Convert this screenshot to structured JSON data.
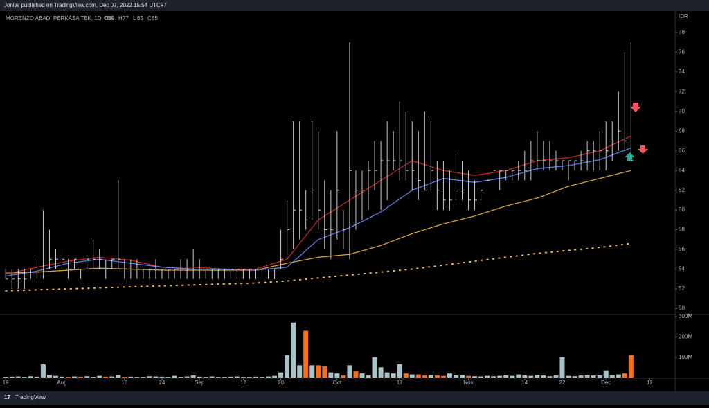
{
  "header": {
    "text": "JoniW published on TradingView.com, Dec 07, 2022 15:54 UTC+7"
  },
  "footer": {
    "brand": "TradingView"
  },
  "chart_data": {
    "type": "ohlc",
    "legend": {
      "symbol": "MORENZO ABADI PERKASA TBK, 1D, IDX",
      "ohlc": [
        {
          "label": "O",
          "value": 69
        },
        {
          "label": "H",
          "value": 77
        },
        {
          "label": "L",
          "value": 65
        },
        {
          "label": "C",
          "value": 65
        }
      ]
    },
    "currency": "IDR",
    "bar_color": "#c9ccd4",
    "up_color": "#a7c3c7",
    "down_color": "#f5701d",
    "high": [
      54,
      54,
      54,
      54,
      54,
      55,
      60,
      58,
      56,
      56,
      55,
      55,
      54,
      55,
      57,
      56,
      55,
      55,
      63,
      55,
      55,
      55,
      54,
      54,
      55,
      54,
      54,
      54,
      55,
      55,
      56,
      55,
      54,
      54,
      54,
      54,
      54,
      54,
      54,
      54,
      54,
      54,
      54,
      54,
      58,
      61,
      69,
      69,
      62,
      69,
      68,
      63,
      62,
      68,
      60,
      77,
      64,
      64,
      65,
      67,
      67,
      69,
      68,
      71,
      70,
      69,
      68,
      70,
      69,
      65,
      65,
      64,
      66,
      65,
      64,
      63,
      62,
      62,
      63,
      64,
      64,
      64,
      65,
      66,
      67,
      68,
      67,
      67,
      66,
      65,
      65,
      65,
      66,
      67,
      67,
      68,
      69,
      69,
      72,
      76,
      77
    ],
    "low": [
      53,
      52,
      52,
      52,
      53,
      53,
      53,
      54,
      54,
      54,
      53,
      54,
      53,
      54,
      54,
      54,
      53,
      54,
      54,
      53,
      53,
      53,
      53,
      53,
      53,
      53,
      53,
      53,
      53,
      53,
      53,
      53,
      53,
      53,
      53,
      53,
      53,
      53,
      53,
      53,
      53,
      53,
      53,
      53,
      54,
      55,
      56,
      57,
      58,
      59,
      58,
      56,
      55,
      57,
      56,
      55,
      58,
      59,
      60,
      62,
      60,
      61,
      64,
      63,
      63,
      62,
      61,
      62,
      62,
      60,
      60,
      60,
      61,
      61,
      60,
      60,
      61,
      62,
      63,
      62,
      63,
      63,
      63,
      63,
      63,
      64,
      64,
      64,
      64,
      64,
      63,
      64,
      64,
      64,
      64,
      64,
      64,
      65,
      66,
      66,
      65
    ],
    "close": [
      53,
      53,
      53,
      53,
      54,
      54,
      54,
      55,
      55,
      55,
      54,
      55,
      54,
      55,
      55,
      55,
      54,
      55,
      55,
      54,
      54,
      54,
      54,
      54,
      54,
      54,
      54,
      54,
      54,
      54,
      54,
      54,
      54,
      54,
      54,
      54,
      54,
      54,
      54,
      54,
      54,
      54,
      54,
      54,
      55,
      58,
      60,
      60,
      59,
      62,
      60,
      58,
      58,
      62,
      58,
      64,
      62,
      62,
      64,
      64,
      65,
      65,
      65,
      65,
      64,
      64,
      63,
      62,
      64,
      62,
      61,
      61,
      62,
      62,
      61,
      61,
      62,
      63,
      64,
      64,
      64,
      64,
      64,
      64,
      65,
      65,
      65,
      65,
      65,
      65,
      65,
      65,
      65,
      66,
      66,
      66,
      66,
      67,
      68,
      67,
      65
    ],
    "volume": [
      3,
      4,
      5,
      3,
      6,
      4,
      65,
      12,
      8,
      4,
      3,
      5,
      4,
      6,
      3,
      8,
      4,
      5,
      12,
      3,
      4,
      3,
      3,
      6,
      5,
      4,
      3,
      8,
      3,
      5,
      10,
      4,
      3,
      5,
      3,
      3,
      4,
      5,
      3,
      3,
      4,
      3,
      5,
      8,
      25,
      110,
      270,
      60,
      230,
      60,
      60,
      55,
      25,
      20,
      10,
      60,
      30,
      20,
      10,
      100,
      50,
      25,
      20,
      65,
      20,
      15,
      15,
      10,
      12,
      10,
      8,
      20,
      10,
      12,
      8,
      6,
      5,
      8,
      6,
      8,
      10,
      8,
      15,
      10,
      8,
      12,
      10,
      6,
      10,
      100,
      8,
      6,
      10,
      12,
      10,
      10,
      35,
      12,
      15,
      20,
      110
    ],
    "lines": [
      {
        "color": "#f2b84b",
        "style": "dotted",
        "x": [
          0,
          5,
          10,
          15,
          20,
          25,
          30,
          35,
          40,
          45,
          50,
          55,
          60,
          65,
          70,
          75,
          80,
          85,
          90,
          95,
          100
        ],
        "values": [
          51.8,
          51.9,
          52.0,
          52.1,
          52.2,
          52.3,
          52.4,
          52.5,
          52.6,
          52.8,
          53.1,
          53.4,
          53.7,
          54.0,
          54.4,
          54.8,
          55.2,
          55.6,
          55.9,
          56.2,
          56.6
        ]
      },
      {
        "color": "#d9a13c",
        "style": "solid",
        "x": [
          0,
          5,
          10,
          15,
          20,
          25,
          30,
          35,
          40,
          45,
          50,
          55,
          60,
          65,
          70,
          75,
          80,
          85,
          90,
          95,
          100
        ],
        "values": [
          53.6,
          53.7,
          53.9,
          54.1,
          54.0,
          53.9,
          53.9,
          53.9,
          53.9,
          54.6,
          55.2,
          55.5,
          56.4,
          57.6,
          58.6,
          59.4,
          60.4,
          61.2,
          62.4,
          63.2,
          64.0
        ]
      },
      {
        "color": "#c0271f",
        "style": "solid",
        "x": [
          0,
          5,
          10,
          15,
          20,
          25,
          30,
          35,
          40,
          45,
          50,
          55,
          60,
          65,
          70,
          75,
          80,
          85,
          90,
          95,
          100
        ],
        "values": [
          53.5,
          54.2,
          54.8,
          55.2,
          54.9,
          54.2,
          54.2,
          54.0,
          54.0,
          55,
          59,
          61,
          63,
          65,
          64,
          63.5,
          64,
          65,
          65.3,
          66,
          67.5
        ]
      },
      {
        "color": "#5b7fe6",
        "style": "solid",
        "x": [
          0,
          5,
          10,
          15,
          20,
          25,
          30,
          35,
          40,
          45,
          50,
          55,
          60,
          65,
          70,
          75,
          80,
          85,
          90,
          95,
          100
        ],
        "values": [
          53.3,
          53.8,
          54.6,
          55.0,
          54.6,
          54.2,
          54.0,
          54.0,
          53.9,
          54.2,
          57.0,
          58.2,
          59.8,
          62,
          63.2,
          62.8,
          63.3,
          64.2,
          64.5,
          65.1,
          66.3
        ]
      }
    ],
    "xlim": [
      -0.8,
      105.5
    ],
    "xticks": [
      {
        "value": 0,
        "label": "19"
      },
      {
        "value": 9,
        "label": "Aug"
      },
      {
        "value": 19,
        "label": "15"
      },
      {
        "value": 25,
        "label": "24"
      },
      {
        "value": 31,
        "label": "Sep"
      },
      {
        "value": 38,
        "label": "12"
      },
      {
        "value": 44,
        "label": "20"
      },
      {
        "value": 53,
        "label": "Oct"
      },
      {
        "value": 63,
        "label": "17"
      },
      {
        "value": 74,
        "label": "Nov"
      },
      {
        "value": 83,
        "label": "14"
      },
      {
        "value": 89,
        "label": "22"
      },
      {
        "value": 96,
        "label": "Dec"
      },
      {
        "value": 103,
        "label": "12"
      }
    ],
    "ylim": [
      49.4,
      79.4
    ],
    "yticks": [
      50,
      52,
      54,
      56,
      58,
      60,
      62,
      64,
      66,
      68,
      70,
      72,
      74,
      76,
      78
    ],
    "vlim": [
      0,
      310
    ],
    "vticks": [
      {
        "value": 100,
        "label": "100M"
      },
      {
        "value": 200,
        "label": "200M"
      },
      {
        "value": 300,
        "label": "300M"
      }
    ]
  }
}
